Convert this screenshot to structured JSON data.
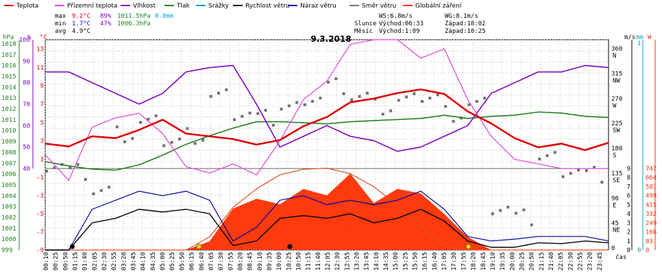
{
  "chart_data": {
    "type": "line",
    "title": "9.3.2018",
    "x_axis_label": "čas",
    "colors": {
      "teplota": "#e00000",
      "prizemni_teplota": "#e040e0",
      "vlhkost": "#8000c0",
      "tlak": "#208020",
      "srazky": "#00a0d0",
      "rychlost_vetru": "#000000",
      "naraz_vetru": "#0000a0",
      "smer_vetru": "#707070",
      "globalni_zareni": "#ff3000"
    },
    "legend": [
      "Teplota",
      "Přízemní teplota",
      "Vlhkost",
      "Tlak",
      "Srážky",
      "Rychlost větru",
      "Náraz větru",
      "Směr větru",
      "Globální záření"
    ],
    "stats": {
      "max_label": "max",
      "min_label": "min",
      "avg_label": "avg",
      "max_temp": "9.2°C",
      "max_hum": "89%",
      "max_press": "1011.5hPa",
      "max_rain": "0.0mm",
      "min_temp": "1.7°C",
      "min_hum": "47%",
      "min_press": "1006.3hPa",
      "avg_temp": "4.9°C"
    },
    "info": {
      "ws": "WS:6.8m/s",
      "wg": "WG:8.1m/s",
      "slunce_label": "Slunce",
      "slunce_vychod": "Východ:06:33",
      "slunce_zapad": "Západ:18:02",
      "mesic_label": "Měsíc",
      "mesic_vychod": "Východ:1:09",
      "mesic_zapad": "Západ:10:25"
    },
    "axis_units": {
      "hpa": "hPa",
      "pct": "%",
      "degc": "°C",
      "ms": "m/s",
      "mm": "mm",
      "w": "W"
    },
    "hpa_ticks": [
      "1018",
      "1017",
      "1016",
      "1015",
      "1014",
      "1013",
      "1012",
      "1011",
      "1010",
      "1009",
      "1008",
      "1007",
      "1006",
      "1005",
      "1004",
      "1003",
      "1002",
      "1001",
      "1000",
      "999"
    ],
    "pct_ticks": [
      "100",
      "90",
      "80",
      "70",
      "60",
      "50",
      "40"
    ],
    "temp_ticks_upper": [
      "13",
      "11",
      "9",
      "7",
      "5",
      "3",
      "1"
    ],
    "temp_ticks_lower": [
      "-1",
      "-3",
      "-5",
      "-7",
      "-9"
    ],
    "direction_ticks": [
      {
        "deg": "360",
        "dir": "N"
      },
      {
        "deg": "315",
        "dir": "NW"
      },
      {
        "deg": "270",
        "dir": "W"
      },
      {
        "deg": "225",
        "dir": "SW"
      },
      {
        "deg": "180",
        "dir": "S"
      },
      {
        "deg": "135",
        "dir": "SE"
      },
      {
        "deg": "90",
        "dir": "E"
      },
      {
        "deg": "45",
        "dir": "NE"
      },
      {
        "deg": "0",
        "dir": ""
      }
    ],
    "ms_ticks": [
      "9",
      "8",
      "7",
      "6",
      "5",
      "4",
      "3",
      "2",
      "1",
      "0"
    ],
    "mm_ticks": [
      "1",
      "0"
    ],
    "w_ticks": [
      "747",
      "664",
      "581",
      "498",
      "415",
      "332",
      "249",
      "166",
      "83",
      "0"
    ],
    "x_labels": [
      "00:10",
      "00:25",
      "00:50",
      "01:15",
      "01:40",
      "02:05",
      "02:30",
      "02:55",
      "03:20",
      "03:45",
      "04:10",
      "04:35",
      "05:00",
      "05:25",
      "05:50",
      "06:15",
      "06:40",
      "07:05",
      "07:30",
      "07:55",
      "08:20",
      "08:45",
      "09:10",
      "09:35",
      "10:00",
      "10:25",
      "10:50",
      "11:15",
      "11:40",
      "12:05",
      "12:30",
      "12:55",
      "13:20",
      "13:45",
      "14:10",
      "14:35",
      "15:00",
      "15:25",
      "15:50",
      "16:15",
      "16:40",
      "17:05",
      "17:30",
      "17:55",
      "18:20",
      "18:45",
      "19:10",
      "19:35",
      "20:00",
      "20:25",
      "20:50",
      "21:15",
      "21:40",
      "22:05",
      "22:30",
      "22:55",
      "23:20",
      "23:45"
    ],
    "hours": [
      0,
      1,
      2,
      3,
      4,
      5,
      6,
      7,
      8,
      9,
      10,
      11,
      12,
      13,
      14,
      15,
      16,
      17,
      18,
      19,
      20,
      21,
      22,
      23,
      24
    ],
    "teplota_c": [
      2.7,
      2.4,
      3.5,
      3.3,
      4.2,
      5.3,
      3.8,
      3.5,
      3.2,
      2.6,
      3.1,
      4.6,
      5.6,
      7.2,
      7.6,
      8.2,
      8.6,
      8.1,
      6.2,
      4.9,
      3.3,
      2.3,
      2.7,
      2.0,
      2.8
    ],
    "prizemni_teplota_c": [
      1.5,
      -1.3,
      4.5,
      5.5,
      6.0,
      3.8,
      0.2,
      -0.5,
      0.5,
      -0.7,
      3.0,
      7.5,
      9.5,
      13.5,
      14.0,
      14.0,
      12.0,
      13.0,
      7.5,
      3.5,
      1.0,
      0.5,
      0.0,
      0.0,
      0.0
    ],
    "vlhkost_pct": [
      85,
      85,
      80,
      75,
      70,
      75,
      85,
      87,
      88,
      70,
      50,
      55,
      60,
      55,
      53,
      48,
      50,
      55,
      60,
      75,
      80,
      85,
      85,
      88,
      87
    ],
    "tlak_hpa": [
      1007.2,
      1006.8,
      1006.5,
      1006.4,
      1006.9,
      1007.8,
      1008.8,
      1009.6,
      1010.3,
      1010.9,
      1010.9,
      1010.8,
      1010.7,
      1010.9,
      1011.0,
      1011.1,
      1011.2,
      1011.5,
      1011.2,
      1011.4,
      1011.5,
      1011.8,
      1011.7,
      1011.4,
      1011.3
    ],
    "rychlost_vetru_ms": [
      0.0,
      0.0,
      3.0,
      3.5,
      4.5,
      4.2,
      4.5,
      4.0,
      0.5,
      1.0,
      3.5,
      3.8,
      3.5,
      4.0,
      3.0,
      3.5,
      4.5,
      3.2,
      1.0,
      0.3,
      0.3,
      0.8,
      0.7,
      1.0,
      0.8
    ],
    "naraz_vetru_ms": [
      0.0,
      0.0,
      4.5,
      5.5,
      6.5,
      6.0,
      6.5,
      5.5,
      1.0,
      2.5,
      5.5,
      6.0,
      5.0,
      5.5,
      5.0,
      5.5,
      6.5,
      4.5,
      1.5,
      1.0,
      1.2,
      1.5,
      1.5,
      1.5,
      1.0
    ],
    "smer_vetru_deg": [
      160,
      145,
      110,
      210,
      230,
      200,
      210,
      280,
      250,
      240,
      260,
      280,
      300,
      280,
      260,
      270,
      280,
      250,
      265,
      80,
      60,
      170,
      150,
      140,
      130
    ],
    "globalni_zareni_wm2": [
      0,
      0,
      0,
      0,
      0,
      0,
      0,
      80,
      380,
      470,
      420,
      560,
      500,
      700,
      430,
      560,
      520,
      330,
      120,
      0,
      0,
      0,
      0,
      0,
      0
    ],
    "teoreticke_zareni_wm2": [
      0,
      0,
      0,
      0,
      0,
      0,
      0,
      120,
      390,
      560,
      690,
      740,
      750,
      700,
      580,
      410,
      210,
      40,
      0,
      0,
      0,
      0,
      0,
      0,
      0
    ]
  }
}
